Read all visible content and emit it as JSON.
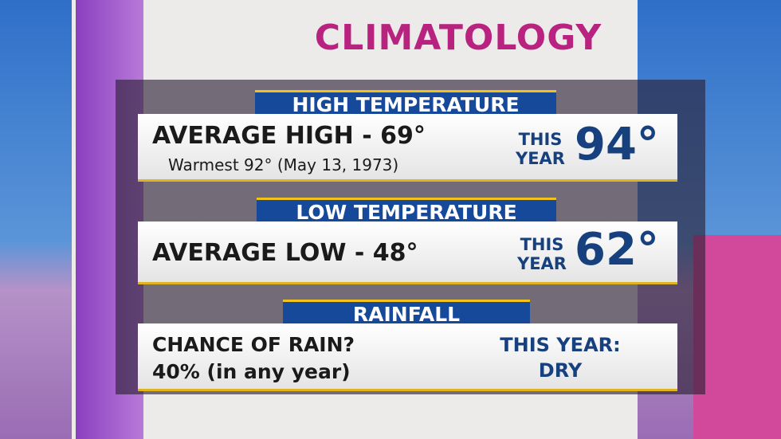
{
  "title": "CLIMATOLOGY",
  "sections": [
    {
      "header": "HIGH TEMPERATURE",
      "main": "AVERAGE HIGH - 69°",
      "sub": "Warmest 92° (May 13, 1973)",
      "this_year_label": "THIS YEAR",
      "this_year_value": "94°"
    },
    {
      "header": "LOW TEMPERATURE",
      "main": "AVERAGE LOW - 48°",
      "this_year_label": "THIS YEAR",
      "this_year_value": "62°"
    },
    {
      "header": "RAINFALL",
      "main": "CHANCE OF RAIN?",
      "sub": "40% (in any year)",
      "this_year_label": "THIS YEAR:",
      "this_year_value": "DRY"
    }
  ]
}
